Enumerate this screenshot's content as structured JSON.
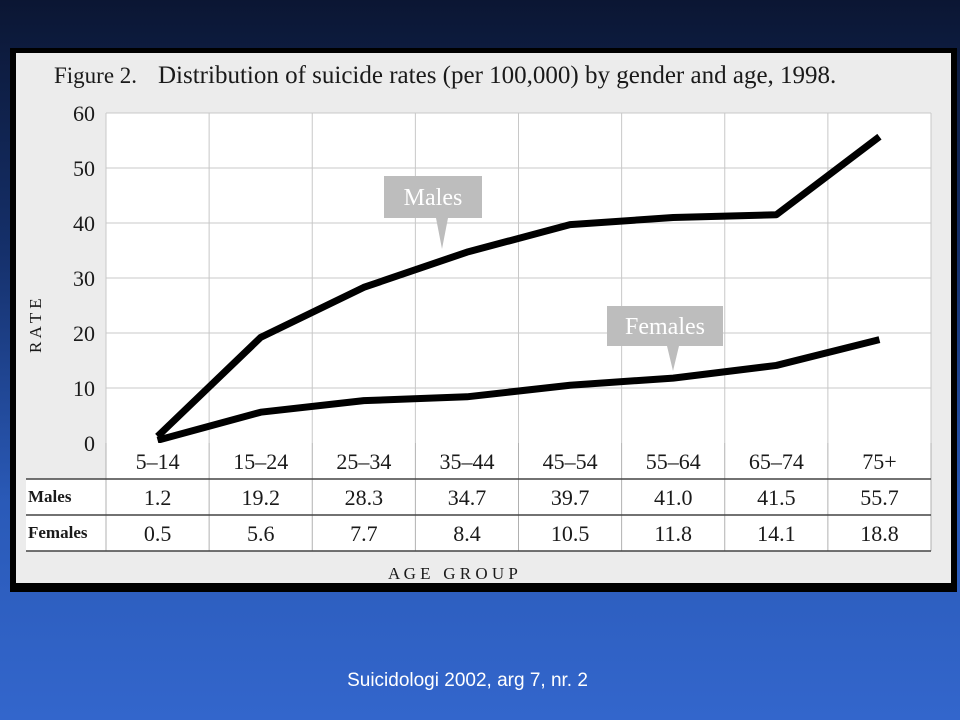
{
  "slide": {
    "source": "Suicidologi 2002, arg 7, nr. 2"
  },
  "chart_data": {
    "type": "line",
    "title_prefix": "Figure 2.",
    "title": "Distribution of suicide rates (per 100,000) by gender and age, 1998.",
    "xlabel": "A G E   G R O U P",
    "ylabel": "R A T E",
    "ylim": [
      0,
      60
    ],
    "yticks": [
      0,
      10,
      20,
      30,
      40,
      50,
      60
    ],
    "grid": true,
    "categories": [
      "5–14",
      "15–24",
      "25–34",
      "35–44",
      "45–54",
      "55–64",
      "65–74",
      "75+"
    ],
    "series": [
      {
        "name": "Males",
        "color": "#000000",
        "values": [
          1.2,
          19.2,
          28.3,
          34.7,
          39.7,
          41.0,
          41.5,
          55.7
        ],
        "labels": [
          "1.2",
          "19.2",
          "28.3",
          "34.7",
          "39.7",
          "41.0",
          "41.5",
          "55.7"
        ]
      },
      {
        "name": "Females",
        "color": "#000000",
        "values": [
          0.5,
          5.6,
          7.7,
          8.4,
          10.5,
          11.8,
          14.1,
          18.8
        ],
        "labels": [
          "0.5",
          "5.6",
          "7.7",
          "8.4",
          "10.5",
          "11.8",
          "14.1",
          "18.8"
        ]
      }
    ]
  }
}
